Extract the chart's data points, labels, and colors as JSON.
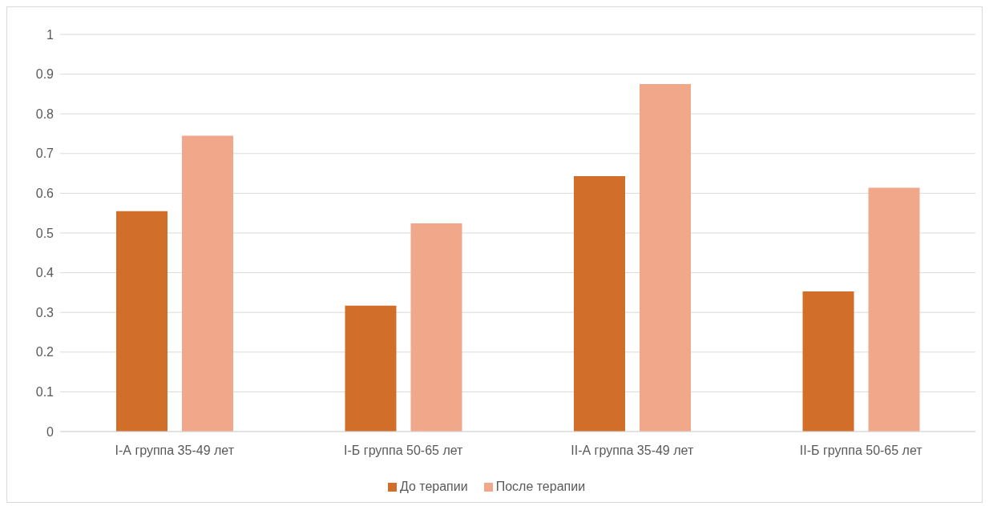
{
  "chart_data": {
    "type": "bar",
    "categories": [
      "I-А группа 35-49 лет",
      "I-Б группа 50-65 лет",
      "II-А группа 35-49 лет",
      "II-Б группа 50-65 лет"
    ],
    "series": [
      {
        "name": "До терапии",
        "color": "#d16e2a",
        "values": [
          0.555,
          0.317,
          0.643,
          0.353
        ]
      },
      {
        "name": "После терапии",
        "color": "#f1a88a",
        "values": [
          0.745,
          0.524,
          0.875,
          0.614
        ]
      }
    ],
    "ylim": [
      0,
      1
    ],
    "yticks": [
      0,
      0.1,
      0.2,
      0.3,
      0.4,
      0.5,
      0.6,
      0.7,
      0.8,
      0.9,
      1
    ],
    "grid": "y",
    "legend": "bottom"
  }
}
